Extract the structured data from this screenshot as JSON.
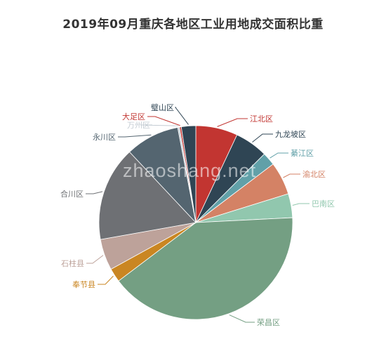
{
  "chart_data": {
    "type": "pie",
    "title": "2019年09月重庆各地区工业用地成交面积比重",
    "watermark": "zhaoshang.net",
    "slices": [
      {
        "label": "江北区",
        "value": 7.0,
        "color": "#c23531"
      },
      {
        "label": "九龙坡区",
        "value": 5.5,
        "color": "#2f4554"
      },
      {
        "label": "綦江区",
        "value": 2.2,
        "color": "#61a0a8"
      },
      {
        "label": "渝北区",
        "value": 5.5,
        "color": "#d48265"
      },
      {
        "label": "巴南区",
        "value": 4.0,
        "color": "#91c7ae"
      },
      {
        "label": "荣昌区",
        "value": 40.5,
        "color": "#749f83"
      },
      {
        "label": "奉节县",
        "value": 2.3,
        "color": "#ca8622"
      },
      {
        "label": "石柱县",
        "value": 5.2,
        "color": "#bda29a"
      },
      {
        "label": "合川区",
        "value": 15.8,
        "color": "#6e7074"
      },
      {
        "label": "永川区",
        "value": 9.0,
        "color": "#546570"
      },
      {
        "label": "万州区",
        "value": 0.3,
        "color": "#c4ccd3"
      },
      {
        "label": "大足区",
        "value": 0.3,
        "color": "#c23531"
      },
      {
        "label": "璧山区",
        "value": 2.4,
        "color": "#2f4554"
      }
    ]
  }
}
